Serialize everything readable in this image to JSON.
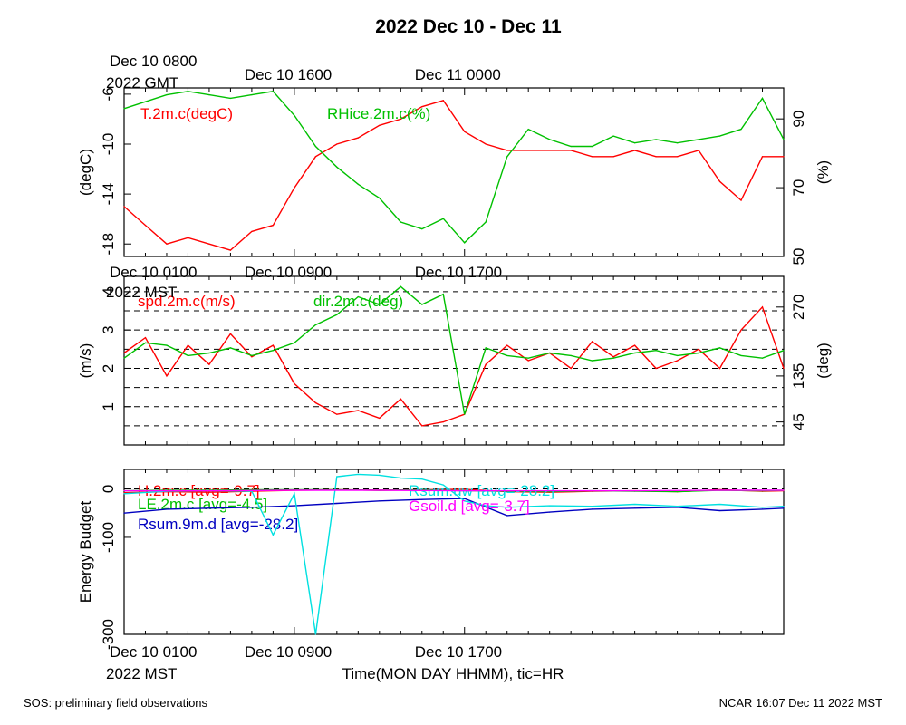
{
  "title": "2022 Dec 10 - Dec 11",
  "footer": {
    "left": "SOS: preliminary field observations",
    "right": "NCAR 16:07 Dec 11 2022 MST"
  },
  "x_axis": {
    "label": "Time(MON DAY HHMM), tic=HR",
    "range_hours": [
      0,
      31
    ],
    "mst_ticks": [
      {
        "hour": 0,
        "label": "Dec 10 0100"
      },
      {
        "hour": 8,
        "label": "Dec 10 0900"
      },
      {
        "hour": 16,
        "label": "Dec 10 1700"
      }
    ],
    "gmt_ticks": [
      {
        "hour": 0,
        "label": "Dec 10 0800"
      },
      {
        "hour": 8,
        "label": "Dec 10 1600"
      },
      {
        "hour": 16,
        "label": "Dec 11 0000"
      }
    ],
    "gmt_year": "2022 GMT",
    "mst_year": "2022 MST"
  },
  "chart_data": [
    {
      "type": "line",
      "panel": "temperature-humidity",
      "y_left": {
        "label": "(degC)",
        "ticks": [
          -6,
          -10,
          -14,
          -18
        ],
        "range": [
          -19,
          -5.5
        ]
      },
      "y_right": {
        "label": "(%)",
        "ticks": [
          90,
          70,
          50
        ],
        "range": [
          50,
          99
        ]
      },
      "grid": false,
      "series": [
        {
          "name": "T.2m.c(degC)",
          "axis": "left",
          "color": "#ff0000",
          "x": [
            0,
            1,
            2,
            3,
            4,
            5,
            6,
            7,
            8,
            9,
            10,
            11,
            12,
            13,
            14,
            15,
            16,
            17,
            18,
            19,
            20,
            21,
            22,
            23,
            24,
            25,
            26,
            27,
            28,
            29,
            30,
            31
          ],
          "y": [
            -15,
            -16.5,
            -18,
            -17.5,
            -18,
            -18.5,
            -17,
            -16.5,
            -13.5,
            -11,
            -10,
            -9.5,
            -8.5,
            -8,
            -7,
            -6.5,
            -9,
            -10,
            -10.5,
            -10.5,
            -10.5,
            -10.5,
            -11,
            -11,
            -10.5,
            -11,
            -11,
            -10.5,
            -13,
            -14.5,
            -11,
            -11
          ]
        },
        {
          "name": "RHice.2m.c(%)",
          "axis": "right",
          "color": "#00c000",
          "x": [
            0,
            1,
            2,
            3,
            4,
            5,
            6,
            7,
            8,
            9,
            10,
            11,
            12,
            13,
            14,
            15,
            16,
            17,
            18,
            19,
            20,
            21,
            22,
            23,
            24,
            25,
            26,
            27,
            28,
            29,
            30,
            31
          ],
          "y": [
            93,
            95,
            97,
            98,
            97,
            96,
            97,
            98,
            91,
            82,
            76,
            71,
            67,
            60,
            58,
            61,
            54,
            60,
            79,
            87,
            84,
            82,
            82,
            85,
            83,
            84,
            83,
            84,
            85,
            87,
            96,
            84
          ]
        }
      ]
    },
    {
      "type": "line",
      "panel": "wind",
      "y_left": {
        "label": "(m/s)",
        "ticks": [
          1,
          2,
          3,
          4
        ],
        "range": [
          0,
          4.4
        ]
      },
      "y_right": {
        "label": "(deg)",
        "ticks": [
          45,
          135,
          270
        ],
        "range": [
          0,
          330
        ]
      },
      "grid": "dashed horizontal",
      "series": [
        {
          "name": "spd.2m.c(m/s)",
          "axis": "left",
          "color": "#ff0000",
          "x": [
            0,
            1,
            2,
            3,
            4,
            5,
            6,
            7,
            8,
            9,
            10,
            11,
            12,
            13,
            14,
            15,
            16,
            17,
            18,
            19,
            20,
            21,
            22,
            23,
            24,
            25,
            26,
            27,
            28,
            29,
            30,
            31
          ],
          "y": [
            2.4,
            2.8,
            1.8,
            2.6,
            2.1,
            2.9,
            2.3,
            2.6,
            1.6,
            1.1,
            0.8,
            0.9,
            0.7,
            1.2,
            0.5,
            0.6,
            0.8,
            2.1,
            2.6,
            2.2,
            2.4,
            2.0,
            2.7,
            2.3,
            2.6,
            2.0,
            2.2,
            2.5,
            2.0,
            3.0,
            3.6,
            2.0
          ]
        },
        {
          "name": "dir.2m.c(deg)",
          "axis": "right",
          "color": "#00c000",
          "x": [
            0,
            1,
            2,
            3,
            4,
            5,
            6,
            7,
            8,
            9,
            10,
            11,
            12,
            13,
            14,
            15,
            16,
            17,
            18,
            19,
            20,
            21,
            22,
            23,
            24,
            25,
            26,
            27,
            28,
            29,
            30,
            31
          ],
          "y": [
            170,
            200,
            195,
            175,
            180,
            190,
            175,
            185,
            200,
            235,
            255,
            290,
            275,
            310,
            275,
            295,
            60,
            190,
            175,
            170,
            180,
            175,
            165,
            170,
            180,
            185,
            175,
            180,
            190,
            175,
            170,
            185
          ]
        }
      ]
    },
    {
      "type": "line",
      "panel": "energy-budget",
      "y_left": {
        "label": "Energy Budget",
        "ticks": [
          0,
          -100,
          -300
        ],
        "range": [
          -300,
          40
        ]
      },
      "grid": "dashed zero line",
      "series": [
        {
          "name": "H.2m.c [avg=-9.7]",
          "color": "#ff0000",
          "x": [
            0,
            2,
            4,
            6,
            8,
            10,
            12,
            14,
            16,
            18,
            20,
            22,
            24,
            26,
            28,
            30,
            31
          ],
          "y": [
            -8,
            -6,
            -7,
            -5,
            -3,
            -2,
            -3,
            -2,
            -1,
            -6,
            -7,
            -5,
            -4,
            -6,
            -2,
            -5,
            -4
          ]
        },
        {
          "name": "LE.2m.c [avg=-4.5]",
          "color": "#00c000",
          "x": [
            0,
            2,
            4,
            6,
            8,
            10,
            12,
            14,
            16,
            18,
            20,
            22,
            24,
            26,
            28,
            30,
            31
          ],
          "y": [
            -4,
            -3,
            -3,
            -2,
            -2,
            -2,
            -3,
            -2,
            -4,
            -5,
            -6,
            -4,
            -5,
            -6,
            -3,
            -4,
            -3
          ]
        },
        {
          "name": "Rsum.9m.d [avg=-28.2]",
          "color": "#0000c0",
          "x": [
            0,
            2,
            4,
            6,
            8,
            10,
            12,
            14,
            16,
            18,
            20,
            22,
            24,
            26,
            28,
            30,
            31
          ],
          "y": [
            -50,
            -42,
            -40,
            -38,
            -35,
            -30,
            -25,
            -22,
            -20,
            -55,
            -48,
            -42,
            -40,
            -38,
            -45,
            -42,
            -40
          ]
        },
        {
          "name": "Rsum.uw [avg=-28.2]",
          "color": "#00e0e0",
          "x": [
            0,
            2,
            4,
            6,
            7,
            8,
            9,
            10,
            11,
            12,
            13,
            14,
            15,
            16,
            17,
            18,
            20,
            22,
            24,
            26,
            28,
            30,
            31
          ],
          "y": [
            -10,
            -5,
            -4,
            -5,
            -95,
            -10,
            -300,
            25,
            30,
            28,
            22,
            20,
            8,
            -25,
            -35,
            -38,
            -35,
            -36,
            -32,
            -36,
            -32,
            -38,
            -36
          ]
        },
        {
          "name": "Gsoil.d [avg=-3.7]",
          "color": "#ff00ff",
          "x": [
            0,
            4,
            8,
            12,
            16,
            20,
            24,
            28,
            31
          ],
          "y": [
            -4,
            -4,
            -3,
            -3,
            -4,
            -4,
            -4,
            -3,
            -3
          ]
        }
      ]
    }
  ]
}
